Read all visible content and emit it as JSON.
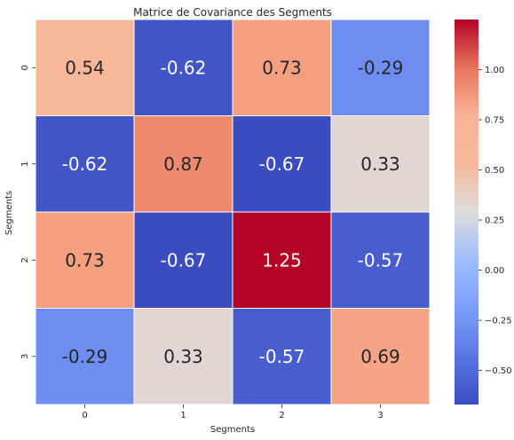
{
  "chart_data": {
    "type": "heatmap",
    "title": "Matrice de Covariance des Segments",
    "xlabel": "Segments",
    "ylabel": "Segments",
    "x_categories": [
      "0",
      "1",
      "2",
      "3"
    ],
    "y_categories": [
      "0",
      "1",
      "2",
      "3"
    ],
    "values": [
      [
        0.54,
        -0.62,
        0.73,
        -0.29
      ],
      [
        -0.62,
        0.87,
        -0.67,
        0.33
      ],
      [
        0.73,
        -0.67,
        1.25,
        -0.57
      ],
      [
        -0.29,
        0.33,
        -0.57,
        0.69
      ]
    ],
    "colormap": "coolwarm",
    "color_range": [
      -0.67,
      1.25
    ],
    "colorbar_ticks": [
      -0.5,
      -0.25,
      0.0,
      0.25,
      0.5,
      0.75,
      1.0
    ],
    "colorbar_tick_labels": [
      "−0.50",
      "−0.25",
      "0.00",
      "0.25",
      "0.50",
      "0.75",
      "1.00"
    ],
    "annotations": true,
    "cell_border_color": "#ffffff"
  }
}
